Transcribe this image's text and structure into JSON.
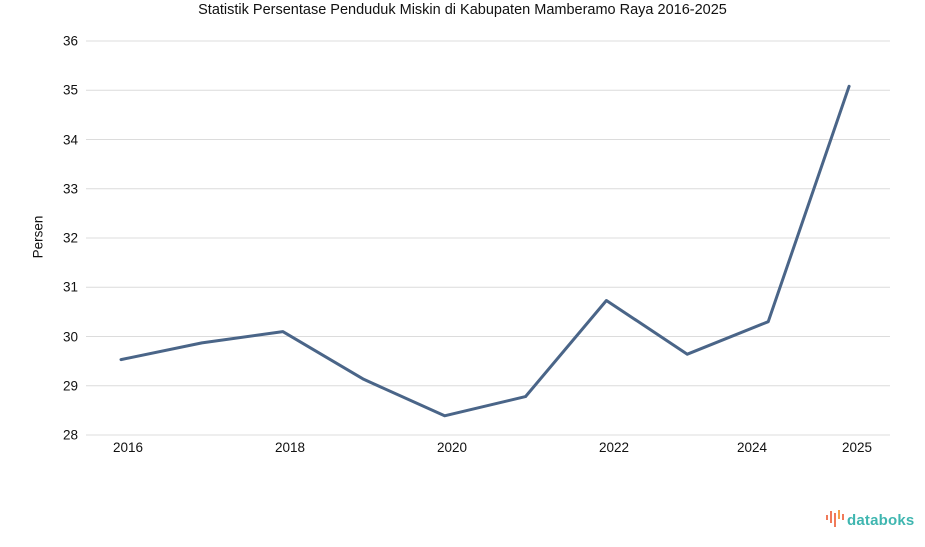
{
  "chart_data": {
    "type": "line",
    "title": "Statistik Persentase Penduduk Miskin di Kabupaten Mamberamo Raya 2016-2025",
    "xlabel": "",
    "ylabel": "Persen",
    "x": [
      2016,
      2017,
      2018,
      2019,
      2020,
      2021,
      2022,
      2023,
      2024,
      2025
    ],
    "series": [
      {
        "name": "Persentase Penduduk Miskin",
        "values": [
          29.53,
          29.87,
          30.1,
          29.13,
          28.39,
          28.78,
          30.73,
          29.64,
          30.3,
          35.08
        ],
        "color": "#4a6588"
      }
    ],
    "ylim": [
      28,
      36
    ],
    "yticks": [
      "28",
      "29",
      "30",
      "31",
      "32",
      "33",
      "34",
      "35",
      "36"
    ],
    "xticks": [
      "2016",
      "2018",
      "2020",
      "2022",
      "2024",
      "2025"
    ],
    "grid": true,
    "legend": "none"
  },
  "branding": {
    "logo_text": "databoks",
    "logo_icon": "databoks-bars-icon"
  }
}
